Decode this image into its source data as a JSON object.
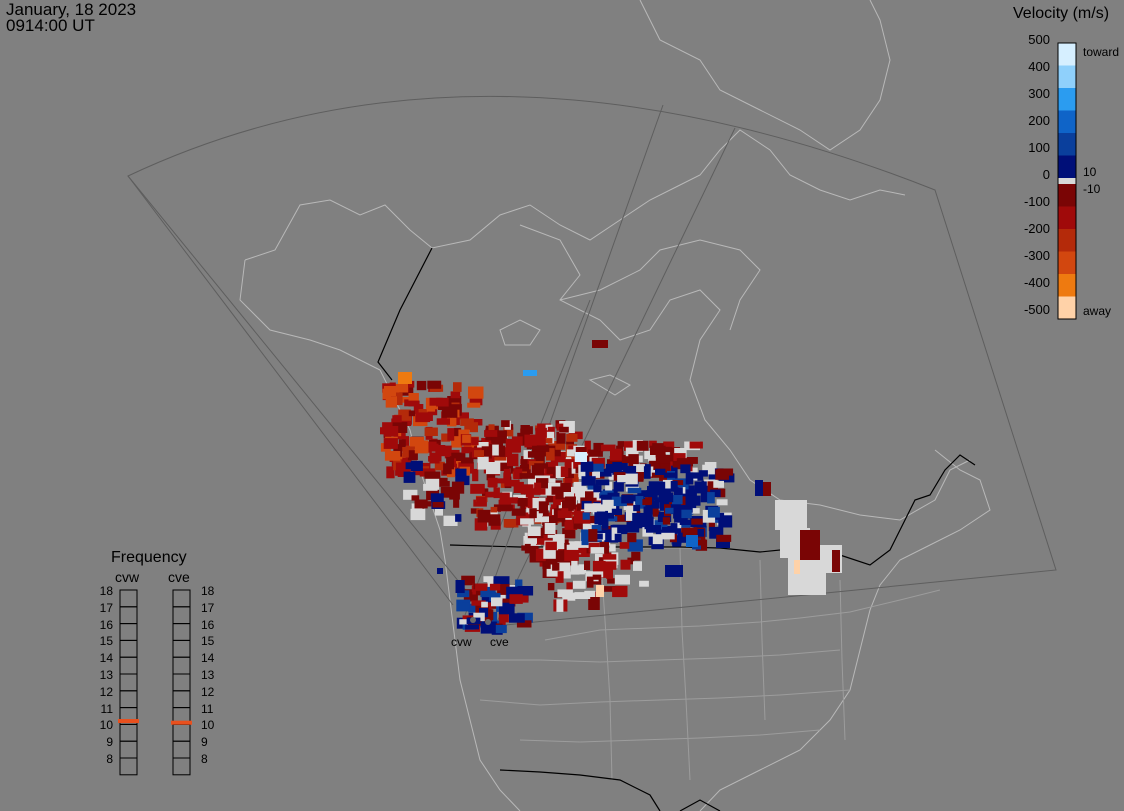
{
  "header": {
    "date": "January, 18 2023",
    "time": "0914:00 UT"
  },
  "colorbar": {
    "title": "Velocity (m/s)",
    "top_label": "toward",
    "bottom_label": "away",
    "ticks": [
      "500",
      "400",
      "300",
      "200",
      "100",
      "0",
      "-100",
      "-200",
      "-300",
      "-400",
      "-500"
    ],
    "inner_ticks": [
      "10",
      "-10"
    ],
    "colors_toward": [
      "#d6efff",
      "#8fd0fb",
      "#2b9cf0",
      "#0f64c8",
      "#0a3f9c",
      "#000f78"
    ],
    "colors_away": [
      "#7a0505",
      "#a00a0a",
      "#b42a0a",
      "#d2470f",
      "#ee7a10",
      "#ffd2a8"
    ],
    "ground_color": "#d8d8d8"
  },
  "frequency": {
    "title": "Frequency",
    "radars": [
      "cvw",
      "cve"
    ],
    "levels": [
      "18",
      "17",
      "16",
      "15",
      "14",
      "13",
      "12",
      "11",
      "10",
      "9",
      "8"
    ],
    "marker_color": "#e8501e",
    "cvw_value": 10.7,
    "cve_value": 10.6
  },
  "sites": {
    "west": "cvw",
    "east": "cve"
  }
}
